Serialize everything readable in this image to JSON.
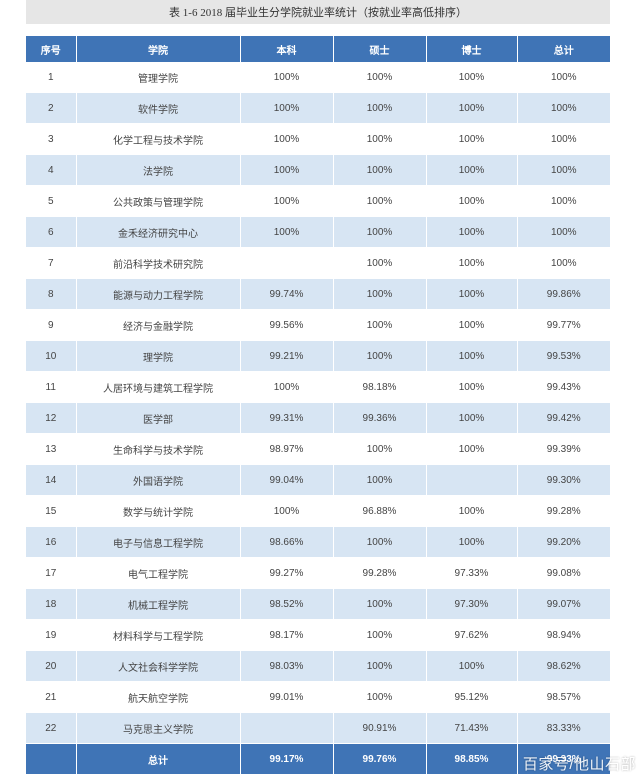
{
  "caption": "表 1-6 2018 届毕业生分学院就业率统计（按就业率高低排序）",
  "headers": [
    "序号",
    "学院",
    "本科",
    "硕士",
    "博士",
    "总计"
  ],
  "rows": [
    [
      "1",
      "管理学院",
      "100%",
      "100%",
      "100%",
      "100%"
    ],
    [
      "2",
      "软件学院",
      "100%",
      "100%",
      "100%",
      "100%"
    ],
    [
      "3",
      "化学工程与技术学院",
      "100%",
      "100%",
      "100%",
      "100%"
    ],
    [
      "4",
      "法学院",
      "100%",
      "100%",
      "100%",
      "100%"
    ],
    [
      "5",
      "公共政策与管理学院",
      "100%",
      "100%",
      "100%",
      "100%"
    ],
    [
      "6",
      "金禾经济研究中心",
      "100%",
      "100%",
      "100%",
      "100%"
    ],
    [
      "7",
      "前沿科学技术研究院",
      "",
      "100%",
      "100%",
      "100%"
    ],
    [
      "8",
      "能源与动力工程学院",
      "99.74%",
      "100%",
      "100%",
      "99.86%"
    ],
    [
      "9",
      "经济与金融学院",
      "99.56%",
      "100%",
      "100%",
      "99.77%"
    ],
    [
      "10",
      "理学院",
      "99.21%",
      "100%",
      "100%",
      "99.53%"
    ],
    [
      "11",
      "人居环境与建筑工程学院",
      "100%",
      "98.18%",
      "100%",
      "99.43%"
    ],
    [
      "12",
      "医学部",
      "99.31%",
      "99.36%",
      "100%",
      "99.42%"
    ],
    [
      "13",
      "生命科学与技术学院",
      "98.97%",
      "100%",
      "100%",
      "99.39%"
    ],
    [
      "14",
      "外国语学院",
      "99.04%",
      "100%",
      "",
      "99.30%"
    ],
    [
      "15",
      "数学与统计学院",
      "100%",
      "96.88%",
      "100%",
      "99.28%"
    ],
    [
      "16",
      "电子与信息工程学院",
      "98.66%",
      "100%",
      "100%",
      "99.20%"
    ],
    [
      "17",
      "电气工程学院",
      "99.27%",
      "99.28%",
      "97.33%",
      "99.08%"
    ],
    [
      "18",
      "机械工程学院",
      "98.52%",
      "100%",
      "97.30%",
      "99.07%"
    ],
    [
      "19",
      "材料科学与工程学院",
      "98.17%",
      "100%",
      "97.62%",
      "98.94%"
    ],
    [
      "20",
      "人文社会科学学院",
      "98.03%",
      "100%",
      "100%",
      "98.62%"
    ],
    [
      "21",
      "航天航空学院",
      "99.01%",
      "100%",
      "95.12%",
      "98.57%"
    ],
    [
      "22",
      "马克思主义学院",
      "",
      "90.91%",
      "71.43%",
      "83.33%"
    ]
  ],
  "total": {
    "label": "总计",
    "bachelor": "99.17%",
    "master": "99.76%",
    "doctor": "98.85%",
    "overall": "99.33%"
  },
  "watermark": "百家号/他山石部",
  "colors": {
    "header_bg": "#3f74b6",
    "row_alt_bg": "#d7e5f3",
    "caption_bg": "#e6e6e6"
  }
}
